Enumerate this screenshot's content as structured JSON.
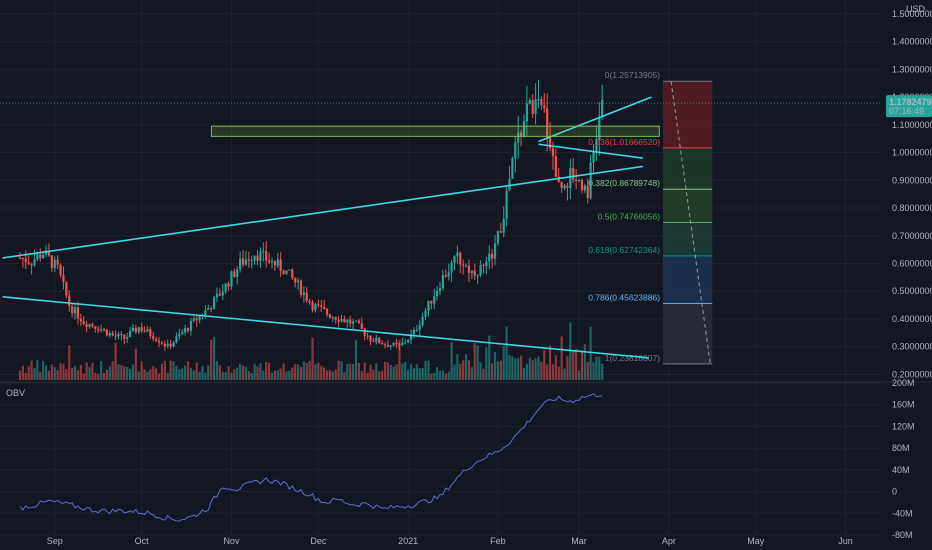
{
  "chart_data": {
    "type": "candlestick",
    "currency_label": "USD",
    "price_axis": {
      "min": 0.18,
      "max": 1.55,
      "ticks": [
        "1.50000000",
        "1.40000000",
        "1.30000000",
        "1.20000000",
        "1.10000000",
        "1.00000000",
        "0.90000000",
        "0.80000000",
        "0.70000000",
        "0.60000000",
        "0.50000000",
        "0.40000000",
        "0.30000000",
        "0.20000000"
      ],
      "tick_values": [
        1.5,
        1.4,
        1.3,
        1.2,
        1.1,
        1.0,
        0.9,
        0.8,
        0.7,
        0.6,
        0.5,
        0.4,
        0.3,
        0.2
      ]
    },
    "last_price": {
      "value": 1.17824793,
      "label": "1.17824793",
      "countdown": "07:16:49",
      "color": "#26a69a"
    },
    "time_axis": {
      "labels": [
        "Sep",
        "Oct",
        "Nov",
        "Dec",
        "2021",
        "Feb",
        "Mar",
        "Apr",
        "May",
        "Jun"
      ],
      "label_days": [
        12,
        42,
        73,
        103,
        134,
        165,
        193,
        224,
        254,
        285
      ],
      "day_range": [
        0,
        290
      ]
    },
    "price_series_approx": {
      "days": [
        0,
        4,
        8,
        13,
        17,
        22,
        27,
        32,
        36,
        41,
        46,
        51,
        56,
        61,
        66,
        71,
        76,
        81,
        86,
        91,
        96,
        101,
        106,
        111,
        116,
        121,
        126,
        131,
        136,
        141,
        146,
        151,
        156,
        161,
        166,
        171,
        176,
        181,
        186,
        191,
        196,
        201
      ],
      "close": [
        0.62,
        0.61,
        0.64,
        0.58,
        0.45,
        0.39,
        0.37,
        0.34,
        0.33,
        0.37,
        0.34,
        0.3,
        0.35,
        0.4,
        0.45,
        0.52,
        0.6,
        0.64,
        0.61,
        0.58,
        0.52,
        0.45,
        0.42,
        0.4,
        0.38,
        0.33,
        0.31,
        0.3,
        0.35,
        0.45,
        0.55,
        0.62,
        0.57,
        0.59,
        0.72,
        1.02,
        1.18,
        1.14,
        0.88,
        0.92,
        0.87,
        1.178
      ]
    },
    "fibonacci": {
      "levels": [
        {
          "ratio": "0",
          "label": "0(1.25713905)",
          "price": 1.25713905,
          "color": "#787b86"
        },
        {
          "ratio": "0.236",
          "label": "0.236(1.01666520)",
          "price": 1.0166652,
          "color": "#f23645"
        },
        {
          "ratio": "0.382",
          "label": "0.382(0.86789748)",
          "price": 0.86789748,
          "color": "#81c784"
        },
        {
          "ratio": "0.5",
          "label": "0.5(0.74766056)",
          "price": 0.74766056,
          "color": "#4caf50"
        },
        {
          "ratio": "0.618",
          "label": "0.618(0.62742364)",
          "price": 0.62742364,
          "color": "#089981"
        },
        {
          "ratio": "0.786",
          "label": "0.786(0.45623886)",
          "price": 0.45623886,
          "color": "#64b5f6"
        },
        {
          "ratio": "1",
          "label": "1(0.23818607)",
          "price": 0.23818607,
          "color": "#787b86"
        }
      ],
      "zone_colors": [
        "#5b1d24",
        "#1f3b2a",
        "#27432c",
        "#1d3d36",
        "#1e3350",
        "#2a2e39"
      ]
    },
    "indicator": {
      "name": "OBV",
      "ticks": [
        "200M",
        "160M",
        "120M",
        "80M",
        "40M",
        "0",
        "-40M",
        "-80M"
      ],
      "tick_values": [
        200,
        160,
        120,
        80,
        40,
        0,
        -40,
        -80
      ],
      "range": [
        -80,
        200
      ],
      "color": "#5b6fd6",
      "values_approx": {
        "days": [
          0,
          5,
          10,
          15,
          20,
          25,
          30,
          35,
          40,
          45,
          50,
          55,
          60,
          65,
          70,
          75,
          80,
          85,
          90,
          95,
          100,
          105,
          110,
          115,
          120,
          125,
          130,
          135,
          140,
          145,
          150,
          155,
          160,
          165,
          170,
          175,
          180,
          185,
          190,
          195,
          201
        ],
        "values": [
          -30,
          -25,
          -18,
          -22,
          -28,
          -34,
          -36,
          -35,
          -37,
          -40,
          -48,
          -52,
          -45,
          -30,
          10,
          5,
          15,
          22,
          16,
          5,
          -5,
          -20,
          -15,
          -24,
          -22,
          -32,
          -28,
          -25,
          -18,
          -10,
          20,
          46,
          62,
          74,
          96,
          126,
          158,
          172,
          166,
          175,
          180
        ]
      }
    },
    "colors": {
      "up": "#26a69a",
      "down": "#ef5350",
      "trendline": "#3fd8e6",
      "zone_box": "#7fbf4f"
    }
  }
}
